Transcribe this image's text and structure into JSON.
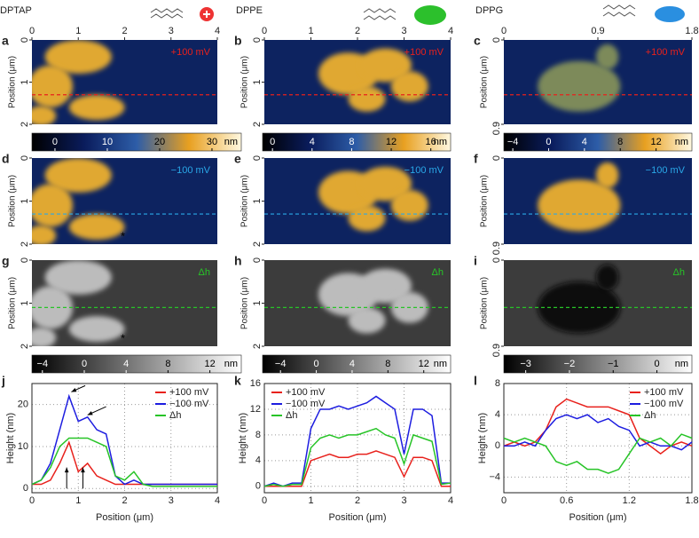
{
  "columns": [
    {
      "name": "DPTAP",
      "xlim": [
        0,
        4
      ],
      "xticks": [
        0,
        1,
        2,
        3,
        4
      ],
      "ylim": [
        0,
        2
      ],
      "yticks": [
        0,
        1,
        2
      ]
    },
    {
      "name": "DPPE",
      "xlim": [
        0,
        4
      ],
      "xticks": [
        0,
        1,
        2,
        3,
        4
      ],
      "ylim": [
        0,
        2
      ],
      "yticks": [
        0,
        1,
        2
      ]
    },
    {
      "name": "DPPG",
      "xlim": [
        0,
        1.8
      ],
      "xticks": [
        0,
        0.9,
        1.8
      ],
      "ylim": [
        0,
        0.9
      ],
      "yticks": [
        0,
        0.9
      ]
    }
  ],
  "image_ylabel": "Position (μm)",
  "image_rows": [
    {
      "annotation": "+100 mV",
      "panels": [
        "a",
        "b",
        "c"
      ]
    },
    {
      "annotation": "−100 mV",
      "panels": [
        "d",
        "e",
        "f"
      ]
    },
    {
      "annotation": "Δh",
      "panels": [
        "g",
        "h",
        "i"
      ]
    }
  ],
  "asterisk": "*",
  "colorbars": [
    {
      "unit": "nm",
      "bars": [
        {
          "lim": [
            -4.4,
            35.6
          ],
          "ticks": [
            0,
            10,
            20,
            30
          ]
        },
        {
          "lim": [
            -1,
            18
          ],
          "ticks": [
            0,
            4,
            8,
            12,
            16
          ]
        },
        {
          "lim": [
            -5,
            16
          ],
          "ticks": [
            {
              "value": -4,
              "label": "−4"
            },
            0,
            4,
            8,
            12
          ]
        }
      ]
    },
    {
      "unit": "nm",
      "bars": [
        {
          "lim": [
            -5,
            15
          ],
          "ticks": [
            {
              "value": -4,
              "label": "−4"
            },
            0,
            4,
            8,
            12
          ]
        },
        {
          "lim": [
            -6,
            15
          ],
          "ticks": [
            {
              "value": -4,
              "label": "−4"
            },
            0,
            4,
            8,
            12
          ]
        },
        {
          "lim": [
            -3.5,
            0.8
          ],
          "ticks": [
            {
              "value": -3,
              "label": "−3"
            },
            {
              "value": -2,
              "label": "−2"
            },
            {
              "value": -1,
              "label": "−1"
            },
            0
          ]
        }
      ]
    }
  ],
  "chart_data": [
    {
      "type": "line",
      "label": "j",
      "xlabel": "Position (μm)",
      "ylabel": "Height (nm)",
      "x": [
        0,
        0.2,
        0.4,
        0.6,
        0.8,
        1.0,
        1.2,
        1.4,
        1.6,
        1.8,
        2.0,
        2.2,
        2.4,
        2.6,
        2.8,
        3.0,
        3.2,
        3.4,
        3.6,
        3.8,
        4.0
      ],
      "series": [
        {
          "name": "+100 mV",
          "color": "#e8211c",
          "values": [
            1,
            1,
            2,
            6,
            11,
            4,
            6,
            3,
            2,
            1,
            1,
            1,
            1,
            1,
            1,
            1,
            1,
            1,
            1,
            1,
            1
          ]
        },
        {
          "name": "−100 mV",
          "color": "#1d1de0",
          "values": [
            1,
            2,
            6,
            14,
            22,
            16,
            17,
            14,
            13,
            3,
            1,
            2,
            1,
            1,
            1,
            1,
            1,
            1,
            1,
            1,
            1
          ]
        },
        {
          "name": "Δh",
          "color": "#27c427",
          "values": [
            1,
            2,
            5,
            10,
            12,
            12,
            12,
            11,
            10,
            3,
            2,
            4,
            1,
            0.5,
            0.5,
            0.5,
            0.5,
            0.5,
            0.5,
            0.5,
            0.5
          ]
        }
      ],
      "xlim": [
        0,
        4
      ],
      "xticks": [
        0,
        1,
        2,
        3,
        4
      ],
      "ylim": [
        -1,
        25
      ],
      "yticks": [
        0,
        10,
        20
      ],
      "grid": true,
      "legend": "upper right"
    },
    {
      "type": "line",
      "label": "k",
      "xlabel": "Position (μm)",
      "ylabel": "Height (nm)",
      "x": [
        0,
        0.2,
        0.4,
        0.6,
        0.8,
        1.0,
        1.2,
        1.4,
        1.6,
        1.8,
        2.0,
        2.2,
        2.4,
        2.6,
        2.8,
        3.0,
        3.2,
        3.4,
        3.6,
        3.8,
        4.0
      ],
      "series": [
        {
          "name": "+100 mV",
          "color": "#e8211c",
          "values": [
            0,
            0,
            0,
            0,
            0,
            4,
            4.5,
            5,
            4.5,
            4.5,
            5,
            5,
            5.5,
            5,
            4.5,
            1.5,
            4.5,
            4.5,
            4,
            0,
            0
          ]
        },
        {
          "name": "−100 mV",
          "color": "#1d1de0",
          "values": [
            0,
            0.5,
            0,
            0.5,
            0.5,
            9,
            12,
            12,
            12.5,
            12,
            12.5,
            13,
            14,
            13,
            12,
            5,
            12,
            12,
            11,
            0.5,
            0.5
          ]
        },
        {
          "name": "Δh",
          "color": "#27c427",
          "values": [
            0,
            0.3,
            0,
            0.3,
            0.3,
            6,
            7.5,
            8,
            7.5,
            8,
            8,
            8.5,
            9,
            8,
            7.5,
            3.5,
            8,
            7.5,
            7,
            0.3,
            0.5
          ]
        }
      ],
      "xlim": [
        0,
        4
      ],
      "xticks": [
        0,
        1,
        2,
        3,
        4
      ],
      "ylim": [
        -1,
        16
      ],
      "yticks": [
        0,
        4,
        8,
        12,
        16
      ],
      "grid": true,
      "legend": "upper left"
    },
    {
      "type": "line",
      "label": "l",
      "xlabel": "Position (μm)",
      "ylabel": "Height (nm)",
      "x": [
        0,
        0.1,
        0.2,
        0.3,
        0.4,
        0.5,
        0.6,
        0.7,
        0.8,
        0.9,
        1.0,
        1.1,
        1.2,
        1.3,
        1.4,
        1.5,
        1.6,
        1.7,
        1.8
      ],
      "series": [
        {
          "name": "+100 mV",
          "color": "#e8211c",
          "values": [
            0,
            0.5,
            0,
            0.5,
            2,
            5,
            6,
            5.5,
            5,
            5,
            5,
            4.5,
            4,
            1,
            0,
            -1,
            0,
            0.5,
            0
          ]
        },
        {
          "name": "−100 mV",
          "color": "#1d1de0",
          "values": [
            0,
            0,
            0.5,
            0,
            2,
            3.5,
            4,
            3.5,
            4,
            3,
            3.5,
            2.5,
            2,
            0,
            0.5,
            0,
            0,
            -0.5,
            0.5
          ]
        },
        {
          "name": "Δh",
          "color": "#27c427",
          "values": [
            1,
            0.5,
            1,
            0.5,
            0,
            -2,
            -2.5,
            -2,
            -3,
            -3,
            -3.5,
            -3,
            -1,
            1,
            0.5,
            1,
            0,
            1.5,
            1
          ]
        }
      ],
      "xlim": [
        0,
        1.8
      ],
      "xticks": [
        0,
        0.6,
        1.2,
        1.8
      ],
      "ylim": [
        -6,
        8
      ],
      "yticks": [
        {
          "value": -4,
          "label": "−4"
        },
        0,
        4,
        8
      ],
      "grid": true,
      "legend": "upper right"
    }
  ]
}
